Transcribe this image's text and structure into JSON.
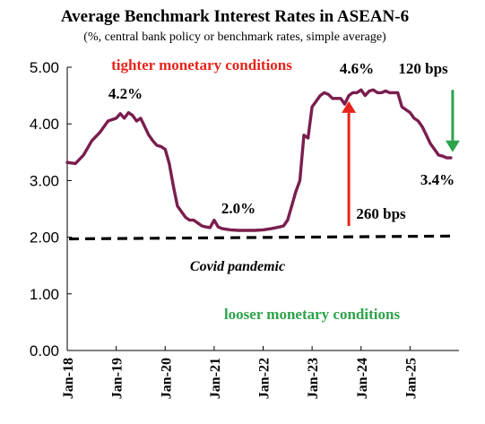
{
  "chart_data": {
    "type": "line",
    "title": "Average Benchmark Interest Rates in ASEAN-6",
    "subtitle": "(%, central bank policy or benchmark rates, simple average)",
    "ylim": [
      0,
      5
    ],
    "yticks": [
      "0.00",
      "1.00",
      "2.00",
      "3.00",
      "4.00",
      "5.00"
    ],
    "xticks": [
      "Jan-18",
      "Jan-19",
      "Jan-20",
      "Jan-21",
      "Jan-22",
      "Jan-23",
      "Jan-24",
      "Jan-25"
    ],
    "xrange": [
      "Jan-18",
      "Jan-26"
    ],
    "grid": false,
    "series": [
      {
        "color": "#7a1e4e",
        "x": [
          "Jan-18",
          "Mar-18",
          "May-18",
          "Jul-18",
          "Sep-18",
          "Nov-18",
          "Jan-19",
          "Feb-19",
          "Mar-19",
          "Apr-19",
          "May-19",
          "Jun-19",
          "Jul-19",
          "Aug-19",
          "Sep-19",
          "Oct-19",
          "Nov-19",
          "Dec-19",
          "Jan-20",
          "Feb-20",
          "Mar-20",
          "Apr-20",
          "May-20",
          "Jun-20",
          "Jul-20",
          "Aug-20",
          "Sep-20",
          "Oct-20",
          "Nov-20",
          "Dec-20",
          "Jan-21",
          "Feb-21",
          "Mar-21",
          "May-21",
          "Jul-21",
          "Sep-21",
          "Nov-21",
          "Jan-22",
          "Mar-22",
          "May-22",
          "Jun-22",
          "Jul-22",
          "Aug-22",
          "Sep-22",
          "Oct-22",
          "Nov-22",
          "Dec-22",
          "Jan-23",
          "Feb-23",
          "Mar-23",
          "Apr-23",
          "May-23",
          "Jun-23",
          "Jul-23",
          "Aug-23",
          "Sep-23",
          "Oct-23",
          "Nov-23",
          "Dec-23",
          "Jan-24",
          "Feb-24",
          "Mar-24",
          "Apr-24",
          "May-24",
          "Jun-24",
          "Jul-24",
          "Aug-24",
          "Sep-24",
          "Oct-24",
          "Nov-24",
          "Dec-24",
          "Jan-25",
          "Feb-25",
          "Mar-25",
          "Apr-25",
          "May-25",
          "Jun-25",
          "Jul-25",
          "Aug-25",
          "Sep-25",
          "Oct-25",
          "Nov-25"
        ],
        "values": [
          3.32,
          3.3,
          3.45,
          3.7,
          3.85,
          4.05,
          4.1,
          4.18,
          4.1,
          4.2,
          4.15,
          4.05,
          4.1,
          3.95,
          3.8,
          3.7,
          3.62,
          3.6,
          3.55,
          3.3,
          2.9,
          2.55,
          2.45,
          2.35,
          2.3,
          2.3,
          2.25,
          2.2,
          2.18,
          2.17,
          2.3,
          2.18,
          2.15,
          2.13,
          2.12,
          2.12,
          2.12,
          2.13,
          2.15,
          2.18,
          2.2,
          2.3,
          2.55,
          2.8,
          3.0,
          3.8,
          3.75,
          4.3,
          4.4,
          4.5,
          4.55,
          4.52,
          4.45,
          4.45,
          4.45,
          4.35,
          4.5,
          4.55,
          4.55,
          4.6,
          4.5,
          4.58,
          4.6,
          4.55,
          4.55,
          4.58,
          4.55,
          4.55,
          4.55,
          4.3,
          4.25,
          4.2,
          4.1,
          4.05,
          3.95,
          3.8,
          3.65,
          3.55,
          3.45,
          3.43,
          3.4,
          3.4
        ]
      }
    ],
    "reference_line": {
      "value": 1.97,
      "end_value": 2.02,
      "color": "#000000",
      "style": "dashed",
      "label": "Covid pandemic"
    },
    "annotations": [
      {
        "text": "tighter monetary conditions",
        "color": "#e8241a"
      },
      {
        "text": "looser monetary conditions",
        "color": "#2ea34b"
      },
      {
        "text": "4.2%",
        "x": "Jan-19",
        "y": 4.2
      },
      {
        "text": "2.0%",
        "x": "Jan-21",
        "y": 2.0
      },
      {
        "text": "4.6%",
        "x": "Jan-24",
        "y": 4.6
      },
      {
        "text": "3.4%",
        "x": "Nov-25",
        "y": 3.4
      },
      {
        "text": "260 bps",
        "from": 2.2,
        "to": 4.4,
        "color": "#e8241a"
      },
      {
        "text": "120 bps",
        "from": 4.6,
        "to": 3.5,
        "color": "#2ea34b"
      }
    ]
  }
}
